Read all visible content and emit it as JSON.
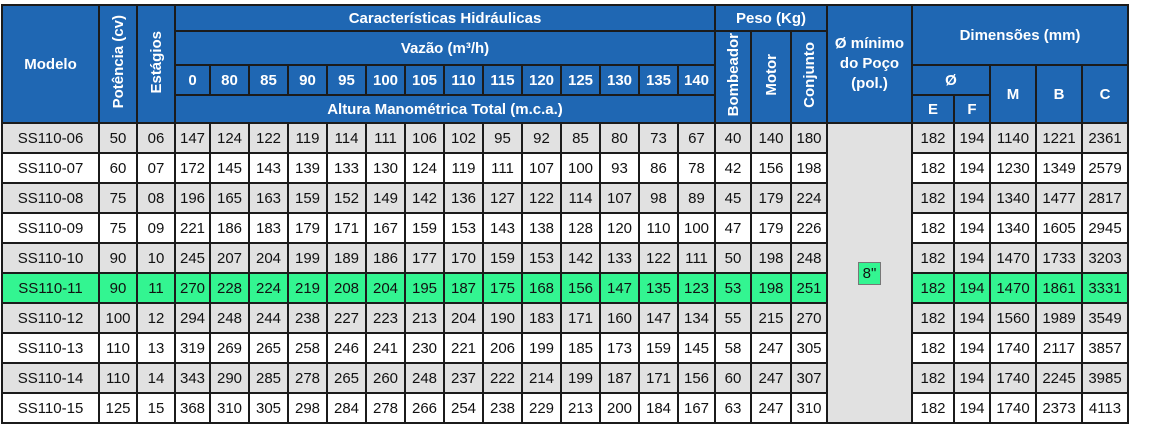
{
  "headers": {
    "model": "Modelo",
    "power": "Potência (cv)",
    "stages": "Estágios",
    "hydraulic": "Características Hidráulicas",
    "flow": "Vazão (m³/h)",
    "flow_values": [
      "0",
      "80",
      "85",
      "90",
      "95",
      "100",
      "105",
      "110",
      "115",
      "120",
      "125",
      "130",
      "135",
      "140"
    ],
    "head": "Altura Manométrica Total (m.c.a.)",
    "weight": "Peso (Kg)",
    "weight_cols": [
      "Bombeador",
      "Motor",
      "Conjunto"
    ],
    "well": "Ø mínimo do Poço (pol.)",
    "dimensions": "Dimensões (mm)",
    "diameter": "Ø",
    "dim_cols": [
      "E",
      "F",
      "M",
      "B",
      "C"
    ]
  },
  "well_value": "8\"",
  "highlight_model": "SS110-11",
  "rows": [
    {
      "model": "SS110-06",
      "power": "50",
      "stages": "06",
      "head": [
        "147",
        "124",
        "122",
        "119",
        "114",
        "111",
        "106",
        "102",
        "95",
        "92",
        "85",
        "80",
        "73",
        "67"
      ],
      "weight": [
        "40",
        "140",
        "180"
      ],
      "dims": [
        "182",
        "194",
        "1140",
        "1221",
        "2361"
      ]
    },
    {
      "model": "SS110-07",
      "power": "60",
      "stages": "07",
      "head": [
        "172",
        "145",
        "143",
        "139",
        "133",
        "130",
        "124",
        "119",
        "111",
        "107",
        "100",
        "93",
        "86",
        "78"
      ],
      "weight": [
        "42",
        "156",
        "198"
      ],
      "dims": [
        "182",
        "194",
        "1230",
        "1349",
        "2579"
      ]
    },
    {
      "model": "SS110-08",
      "power": "75",
      "stages": "08",
      "head": [
        "196",
        "165",
        "163",
        "159",
        "152",
        "149",
        "142",
        "136",
        "127",
        "122",
        "114",
        "107",
        "98",
        "89"
      ],
      "weight": [
        "45",
        "179",
        "224"
      ],
      "dims": [
        "182",
        "194",
        "1340",
        "1477",
        "2817"
      ]
    },
    {
      "model": "SS110-09",
      "power": "75",
      "stages": "09",
      "head": [
        "221",
        "186",
        "183",
        "179",
        "171",
        "167",
        "159",
        "153",
        "143",
        "138",
        "128",
        "120",
        "110",
        "100"
      ],
      "weight": [
        "47",
        "179",
        "226"
      ],
      "dims": [
        "182",
        "194",
        "1340",
        "1605",
        "2945"
      ]
    },
    {
      "model": "SS110-10",
      "power": "90",
      "stages": "10",
      "head": [
        "245",
        "207",
        "204",
        "199",
        "189",
        "186",
        "177",
        "170",
        "159",
        "153",
        "142",
        "133",
        "122",
        "111"
      ],
      "weight": [
        "50",
        "198",
        "248"
      ],
      "dims": [
        "182",
        "194",
        "1470",
        "1733",
        "3203"
      ]
    },
    {
      "model": "SS110-11",
      "power": "90",
      "stages": "11",
      "head": [
        "270",
        "228",
        "224",
        "219",
        "208",
        "204",
        "195",
        "187",
        "175",
        "168",
        "156",
        "147",
        "135",
        "123"
      ],
      "weight": [
        "53",
        "198",
        "251"
      ],
      "dims": [
        "182",
        "194",
        "1470",
        "1861",
        "3331"
      ]
    },
    {
      "model": "SS110-12",
      "power": "100",
      "stages": "12",
      "head": [
        "294",
        "248",
        "244",
        "238",
        "227",
        "223",
        "213",
        "204",
        "190",
        "183",
        "171",
        "160",
        "147",
        "134"
      ],
      "weight": [
        "55",
        "215",
        "270"
      ],
      "dims": [
        "182",
        "194",
        "1560",
        "1989",
        "3549"
      ]
    },
    {
      "model": "SS110-13",
      "power": "110",
      "stages": "13",
      "head": [
        "319",
        "269",
        "265",
        "258",
        "246",
        "241",
        "230",
        "221",
        "206",
        "199",
        "185",
        "173",
        "159",
        "145"
      ],
      "weight": [
        "58",
        "247",
        "305"
      ],
      "dims": [
        "182",
        "194",
        "1740",
        "2117",
        "3857"
      ]
    },
    {
      "model": "SS110-14",
      "power": "110",
      "stages": "14",
      "head": [
        "343",
        "290",
        "285",
        "278",
        "265",
        "260",
        "248",
        "237",
        "222",
        "214",
        "199",
        "187",
        "171",
        "156"
      ],
      "weight": [
        "60",
        "247",
        "307"
      ],
      "dims": [
        "182",
        "194",
        "1740",
        "2245",
        "3985"
      ]
    },
    {
      "model": "SS110-15",
      "power": "125",
      "stages": "15",
      "head": [
        "368",
        "310",
        "305",
        "298",
        "284",
        "278",
        "266",
        "254",
        "238",
        "229",
        "213",
        "200",
        "184",
        "167"
      ],
      "weight": [
        "63",
        "247",
        "310"
      ],
      "dims": [
        "182",
        "194",
        "1740",
        "2373",
        "4113"
      ]
    }
  ]
}
